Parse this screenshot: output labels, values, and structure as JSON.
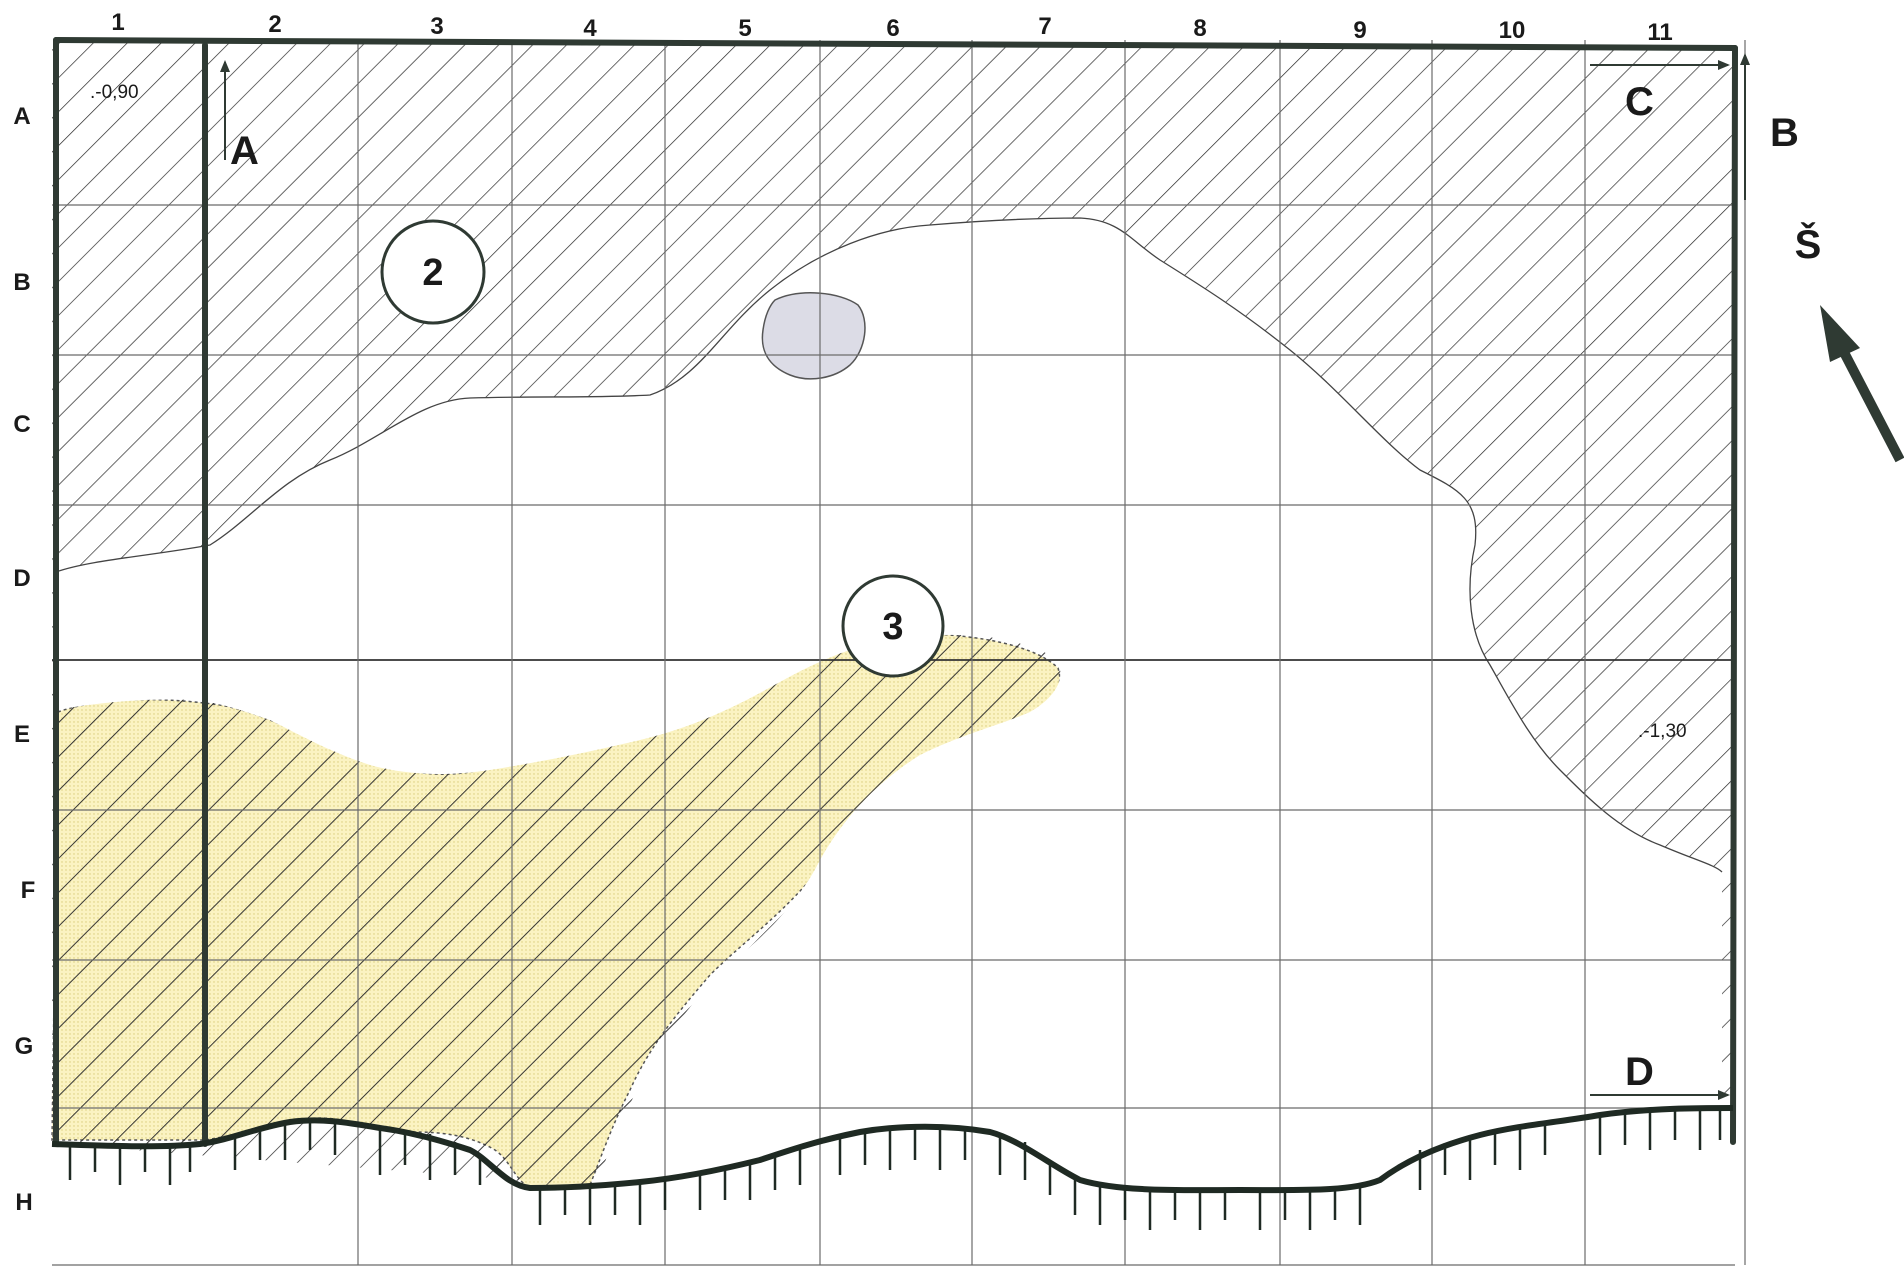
{
  "columns": [
    "1",
    "2",
    "3",
    "4",
    "5",
    "6",
    "7",
    "8",
    "9",
    "10",
    "11"
  ],
  "rows": [
    "A",
    "B",
    "C",
    "D",
    "E",
    "F",
    "G",
    "H"
  ],
  "section_markers": {
    "a": "A",
    "b": "B",
    "c": "C",
    "d": "D"
  },
  "elevations": {
    "top_left": ".-0,90",
    "right": ".-1,30"
  },
  "zones": {
    "zone_2": "2",
    "zone_3": "3"
  },
  "north_label": "Š",
  "colors": {
    "line": "#2f3a33",
    "grid": "#6b6b6b",
    "hatch": "#2a2a2a",
    "yellow_zone": "#fbf3c2",
    "stone": "#dcdce6"
  }
}
